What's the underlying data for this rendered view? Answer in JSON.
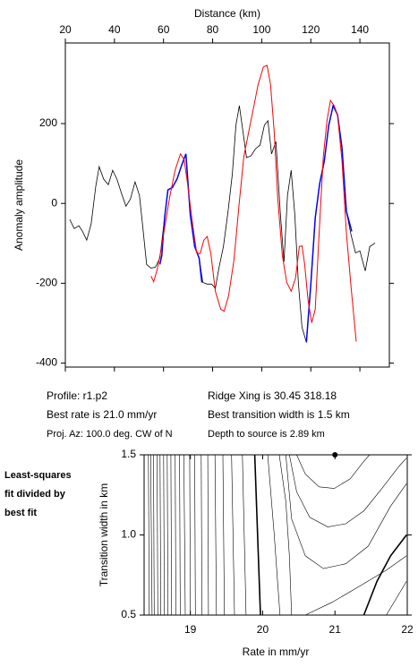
{
  "info": {
    "lines_left": [
      "Profile: r1.p2",
      "Best rate is 21.0 mm/yr",
      "Proj. Az: 100.0 deg. CW of N"
    ],
    "lines_right": [
      "Ridge Xing is 30.45 318.18",
      "Best transition width is 1.5 km",
      "Depth to source is   2.89 km"
    ],
    "note": [
      "Least-squares",
      "fit divided by",
      "best fit"
    ]
  },
  "chart_data": [
    {
      "type": "line",
      "xlabel": "Distance (km)",
      "ylabel": "Anomaly amplitude",
      "xlim": [
        20,
        152
      ],
      "ylim": [
        -410,
        402
      ],
      "xticks": [
        20,
        40,
        60,
        80,
        100,
        120,
        140
      ],
      "yticks": [
        -400,
        -200,
        0,
        200
      ],
      "series": [
        {
          "color": "#000000",
          "width": 0.8,
          "x": [
            21.8,
            23.6,
            25.5,
            27,
            28.7,
            30.5,
            32.4,
            33.8,
            35.6,
            37.5,
            39.3,
            41,
            42.9,
            44.7,
            46.5,
            48.4,
            50.2,
            51.6,
            53.1,
            54.9,
            56.7,
            58.5,
            60.4,
            61.8,
            63.6,
            65.5,
            67.3,
            69.1,
            70.9,
            72.7,
            74.5,
            76,
            77.8,
            79.6,
            81.1,
            82.5,
            84.4,
            86.2,
            88,
            89.5,
            90.9,
            92.4,
            93.8,
            95.6,
            97.5,
            99.3,
            101.1,
            102.5,
            104,
            105.8,
            107.6,
            109.1,
            110.5,
            112,
            113.5,
            114.9,
            116.4,
            118.2,
            120,
            121.8,
            123.6,
            125.5,
            127.3,
            129.1,
            130.9,
            132.7,
            134.5,
            136.4,
            138.2,
            140,
            142.2,
            144,
            146.2
          ],
          "values": [
            -40,
            -63,
            -56,
            -70,
            -92,
            -52,
            43,
            92,
            61,
            47,
            83,
            61,
            25,
            -7,
            11,
            54,
            20,
            -63,
            -153,
            -162,
            -160,
            -137,
            -38,
            34,
            40,
            61,
            94,
            124,
            -29,
            -108,
            -137,
            -198,
            -202,
            -202,
            -213,
            -164,
            -108,
            -25,
            72,
            196,
            245,
            178,
            115,
            119,
            137,
            146,
            196,
            207,
            124,
            155,
            -25,
            -146,
            20,
            83,
            -29,
            -198,
            -310,
            -348,
            -204,
            -36,
            49,
            106,
            196,
            245,
            222,
            139,
            -20,
            -79,
            -124,
            -119,
            -169,
            -108,
            -99
          ]
        },
        {
          "color": "#0000ff",
          "width": 1.5,
          "x": [
            58.5,
            59.3,
            60.4,
            61.8,
            63.6,
            65.5,
            67.3,
            69.1,
            70.9,
            72.7,
            74.5,
            75.6,
            null,
            118.2,
            120,
            121.8,
            123.6,
            125.5,
            127.3,
            129.1,
            130.9,
            132.7,
            134.5,
            136.7
          ],
          "values": [
            -153,
            -130,
            -38,
            34,
            40,
            61,
            94,
            124,
            -29,
            -108,
            -137,
            -198,
            null,
            -348,
            -204,
            -36,
            49,
            106,
            196,
            245,
            222,
            139,
            -20,
            -70
          ]
        },
        {
          "color": "#ff0000",
          "width": 1,
          "x": [
            54.9,
            56,
            57.5,
            58.9,
            60.7,
            62.5,
            64.7,
            66.9,
            68.4,
            69.8,
            71.6,
            73.5,
            74.9,
            76.4,
            77.8,
            79.3,
            81.1,
            83.3,
            84.7,
            86.5,
            88.7,
            90.9,
            92.7,
            94.5,
            96.7,
            98.5,
            100.7,
            102.2,
            103.6,
            105.1,
            106.5,
            108.4,
            110.2,
            112,
            113.8,
            115.3,
            116.4,
            117.5,
            118.9,
            120.4,
            121.8,
            123.3,
            125.1,
            126.6,
            128,
            129.5,
            130.9,
            132.7,
            134.5,
            136.4,
            138.5
          ],
          "values": [
            -182,
            -196,
            -164,
            -119,
            -52,
            16,
            83,
            124,
            110,
            49,
            -40,
            -124,
            -126,
            -92,
            -83,
            -126,
            -220,
            -265,
            -270,
            -231,
            -142,
            4,
            117,
            173,
            240,
            297,
            342,
            346,
            297,
            178,
            16,
            -130,
            -198,
            -220,
            -187,
            -108,
            -106,
            -153,
            -243,
            -299,
            -265,
            -85,
            117,
            207,
            258,
            245,
            222,
            106,
            -74,
            -209,
            -346
          ]
        }
      ]
    },
    {
      "type": "contour",
      "xlabel": "Rate in mm/yr",
      "ylabel": "Transition width in km",
      "xlim": [
        18.36,
        22
      ],
      "ylim": [
        0.5,
        1.5
      ],
      "xticks": [
        19,
        20,
        21,
        22
      ],
      "yticks": [
        0.5,
        {
          "value": 1.0,
          "label": "1.0"
        },
        1.5
      ],
      "best": {
        "x": 21.0,
        "y": 1.5
      },
      "contours": [
        {
          "x": [
            18.42,
            18.43
          ],
          "y": [
            1.5,
            0.5
          ]
        },
        {
          "x": [
            18.45,
            18.47
          ],
          "y": [
            1.5,
            0.5
          ]
        },
        {
          "x": [
            18.49,
            18.5
          ],
          "y": [
            1.5,
            0.5
          ]
        },
        {
          "x": [
            18.54,
            18.55
          ],
          "y": [
            1.5,
            0.5
          ]
        },
        {
          "x": [
            18.58,
            18.59
          ],
          "y": [
            1.5,
            0.5
          ]
        },
        {
          "x": [
            18.63,
            18.64
          ],
          "y": [
            1.5,
            0.5
          ]
        },
        {
          "x": [
            18.68,
            18.69
          ],
          "y": [
            1.5,
            0.5
          ]
        },
        {
          "x": [
            18.73,
            18.74
          ],
          "y": [
            1.5,
            0.5
          ]
        },
        {
          "x": [
            18.79,
            18.8
          ],
          "y": [
            1.5,
            0.5
          ]
        },
        {
          "x": [
            18.85,
            18.86
          ],
          "y": [
            1.5,
            0.5
          ]
        },
        {
          "x": [
            18.91,
            18.93
          ],
          "y": [
            1.5,
            0.5
          ]
        },
        {
          "x": [
            18.99,
            19.0
          ],
          "y": [
            1.5,
            0.5
          ]
        },
        {
          "x": [
            19.06,
            19.07
          ],
          "y": [
            1.5,
            0.5
          ]
        },
        {
          "x": [
            19.15,
            19.16
          ],
          "y": [
            1.5,
            0.5
          ]
        },
        {
          "x": [
            19.24,
            19.25
          ],
          "y": [
            1.5,
            0.5
          ]
        },
        {
          "x": [
            19.34,
            19.36
          ],
          "y": [
            1.5,
            0.5
          ]
        },
        {
          "x": [
            19.45,
            19.47
          ],
          "y": [
            1.5,
            0.5
          ]
        },
        {
          "x": [
            19.57,
            19.61
          ],
          "y": [
            1.5,
            0.5
          ]
        },
        {
          "x": [
            19.72,
            19.77
          ],
          "y": [
            1.5,
            0.5
          ]
        },
        {
          "x": [
            19.89,
            19.97
          ],
          "y": [
            1.5,
            0.5
          ],
          "bold": true
        },
        {
          "x": [
            20.07,
            20.16,
            20.24
          ],
          "y": [
            1.5,
            1.0,
            0.5
          ]
        },
        {
          "x": [
            20.23,
            20.32,
            20.37,
            20.4
          ],
          "y": [
            1.5,
            1.21,
            0.87,
            0.5
          ]
        },
        {
          "x": [
            20.47,
            20.59,
            20.78,
            20.99,
            21.21,
            21.4,
            21.48
          ],
          "y": [
            1.5,
            1.38,
            1.3,
            1.29,
            1.35,
            1.46,
            1.5
          ]
        },
        {
          "x": [
            20.37,
            20.47,
            20.65,
            20.9,
            21.15,
            21.4,
            21.65,
            21.89,
            21.99
          ],
          "y": [
            1.5,
            1.27,
            1.11,
            1.05,
            1.07,
            1.15,
            1.29,
            1.43,
            1.48
          ]
        },
        {
          "x": [
            20.32,
            20.4,
            20.59,
            20.84,
            21.15,
            21.46,
            21.77,
            21.99
          ],
          "y": [
            1.5,
            1.1,
            0.87,
            0.79,
            0.82,
            0.93,
            1.18,
            1.32
          ]
        },
        {
          "x": [
            20.59,
            20.96,
            21.34,
            21.71,
            21.99
          ],
          "y": [
            0.5,
            0.58,
            0.68,
            0.78,
            0.87
          ]
        },
        {
          "x": [
            21.4,
            21.58,
            21.77,
            21.99
          ],
          "y": [
            0.5,
            0.71,
            0.87,
            1.0
          ],
          "bold": true
        },
        {
          "x": [
            21.71,
            21.87,
            21.99
          ],
          "y": [
            0.5,
            0.62,
            0.71
          ]
        }
      ]
    }
  ]
}
